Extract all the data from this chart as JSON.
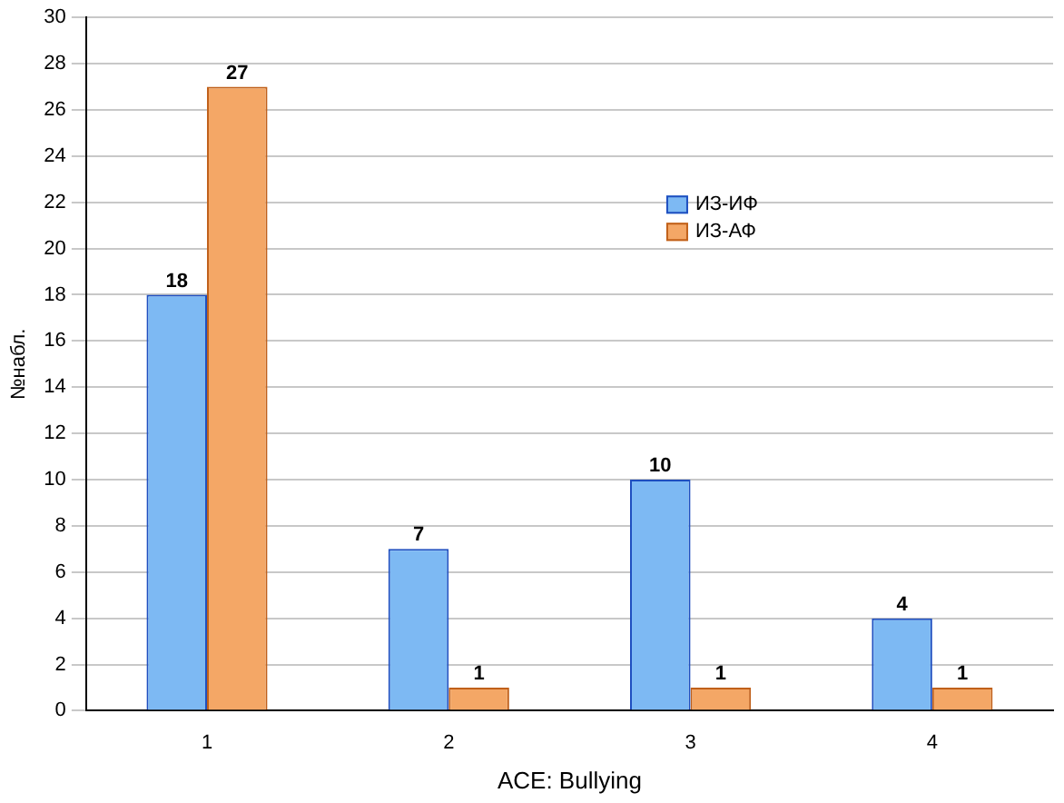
{
  "chart_data": {
    "type": "bar",
    "xlabel": "ACE: Bullying",
    "ylabel": "№набл.",
    "categories": [
      "1",
      "2",
      "3",
      "4"
    ],
    "series": [
      {
        "name": "ИЗ-ИФ",
        "color": "#7db9f3",
        "values": [
          18,
          7,
          10,
          4
        ]
      },
      {
        "name": "ИЗ-АФ",
        "color": "#f4a766",
        "values": [
          27,
          1,
          1,
          1
        ]
      }
    ],
    "ylim": [
      0,
      30
    ],
    "yticks": [
      0,
      2,
      4,
      6,
      8,
      10,
      12,
      14,
      16,
      18,
      20,
      22,
      24,
      26,
      28,
      30
    ],
    "grid": "y",
    "legend": "top right",
    "data_labels": true
  }
}
